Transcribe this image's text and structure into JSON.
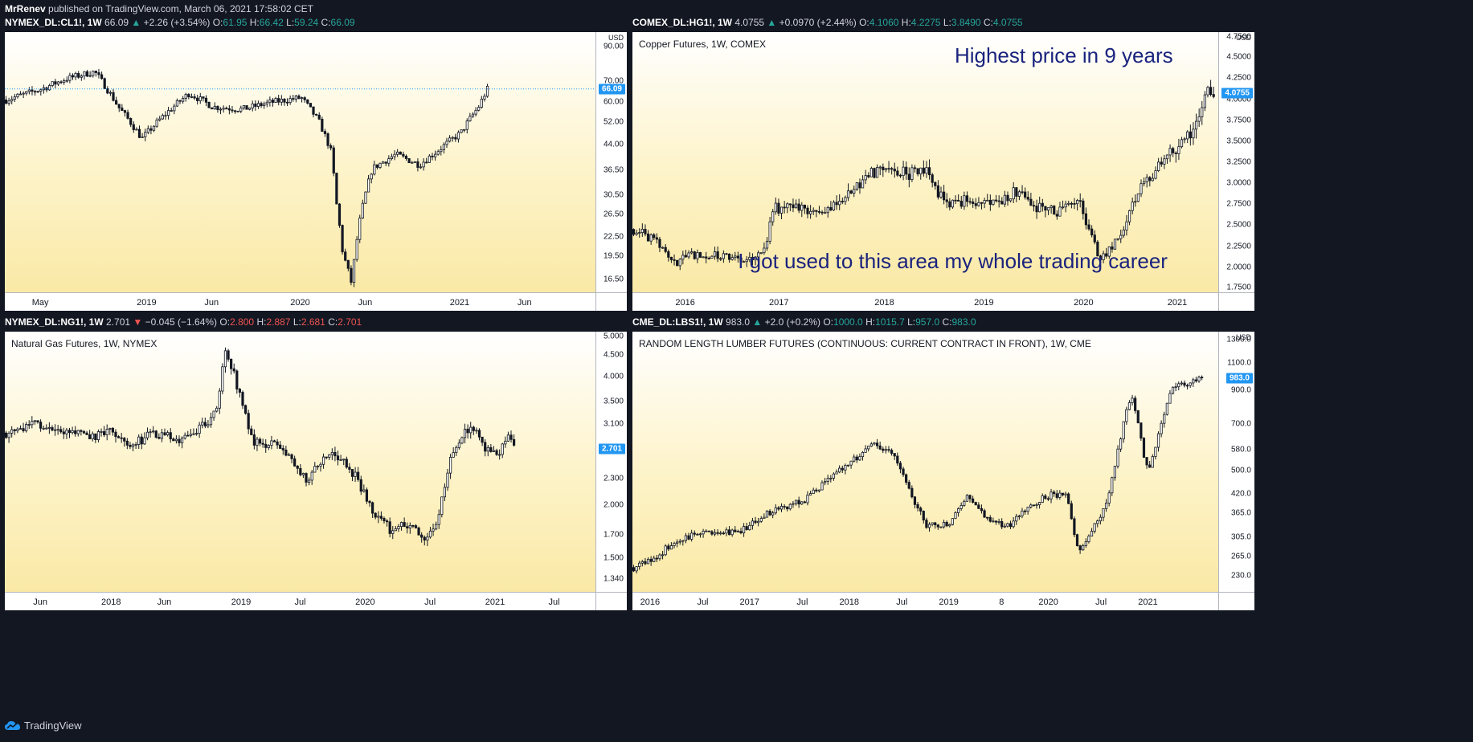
{
  "publisher": {
    "author": "MrRenev",
    "text": "published on TradingView.com, March 06, 2021 17:58:02 CET"
  },
  "footer": {
    "brand": "TradingView",
    "logo_icon": "tradingview-cloud-icon"
  },
  "colors": {
    "up": "#26a69a",
    "down": "#ef5350",
    "price_label": "#2196f3",
    "annotation": "#1a237e"
  },
  "chart_data": [
    {
      "type": "candlestick",
      "header": {
        "symbol": "NYMEX_DL:CL1!, 1W",
        "last": "66.09",
        "dir": "▲",
        "change": "+2.26 (+3.54%)",
        "O": "61.95",
        "H": "66.42",
        "L": "59.24",
        "C": "66.09",
        "color": "up"
      },
      "title": "",
      "currency": "USD",
      "scale": "log",
      "price_label": {
        "text": "66.09",
        "value": 66.09
      },
      "price_line": true,
      "yticks": [
        "90.00",
        "70.00",
        "60.00",
        "52.00",
        "44.00",
        "36.50",
        "30.50",
        "26.50",
        "22.50",
        "19.50",
        "16.50"
      ],
      "ylim": [
        15.0,
        100
      ],
      "xticks": [
        "May",
        "2019",
        "Jun",
        "2020",
        "Jun",
        "2021",
        "Jun"
      ],
      "xtick_pos": [
        0.06,
        0.24,
        0.35,
        0.5,
        0.61,
        0.77,
        0.88
      ],
      "anchors": [
        [
          0.0,
          61
        ],
        [
          0.06,
          66
        ],
        [
          0.1,
          71
        ],
        [
          0.15,
          75
        ],
        [
          0.19,
          58
        ],
        [
          0.23,
          46
        ],
        [
          0.27,
          55
        ],
        [
          0.31,
          64
        ],
        [
          0.35,
          58
        ],
        [
          0.4,
          57
        ],
        [
          0.45,
          60
        ],
        [
          0.5,
          62
        ],
        [
          0.53,
          52
        ],
        [
          0.55,
          42
        ],
        [
          0.56,
          28
        ],
        [
          0.57,
          20
        ],
        [
          0.585,
          16
        ],
        [
          0.6,
          26
        ],
        [
          0.62,
          37
        ],
        [
          0.66,
          41
        ],
        [
          0.7,
          38
        ],
        [
          0.73,
          42
        ],
        [
          0.77,
          48
        ],
        [
          0.8,
          58
        ],
        [
          0.815,
          66
        ]
      ],
      "annotations": []
    },
    {
      "type": "candlestick",
      "header": {
        "symbol": "COMEX_DL:HG1!, 1W",
        "last": "4.0755",
        "dir": "▲",
        "change": "+0.0970 (+2.44%)",
        "O": "4.1060",
        "H": "4.2275",
        "L": "3.8490",
        "C": "4.0755",
        "color": "up"
      },
      "title": "Copper Futures, 1W, COMEX",
      "currency": "USD",
      "scale": "linear",
      "price_label": {
        "text": "4.0755",
        "value": 4.0755
      },
      "price_line": false,
      "yticks": [
        "4.7500",
        "4.5000",
        "4.2500",
        "4.0000",
        "3.7500",
        "3.5000",
        "3.2500",
        "3.0000",
        "2.7500",
        "2.5000",
        "2.2500",
        "2.0000",
        "1.7500"
      ],
      "ylim": [
        1.7,
        4.8
      ],
      "xticks": [
        "2016",
        "2017",
        "2018",
        "2019",
        "2020",
        "2021"
      ],
      "xtick_pos": [
        0.09,
        0.25,
        0.43,
        0.6,
        0.77,
        0.93
      ],
      "anchors": [
        [
          0.0,
          2.45
        ],
        [
          0.04,
          2.3
        ],
        [
          0.07,
          2.05
        ],
        [
          0.1,
          2.15
        ],
        [
          0.14,
          2.15
        ],
        [
          0.18,
          2.08
        ],
        [
          0.22,
          2.15
        ],
        [
          0.24,
          2.7
        ],
        [
          0.28,
          2.72
        ],
        [
          0.32,
          2.6
        ],
        [
          0.36,
          2.8
        ],
        [
          0.4,
          3.1
        ],
        [
          0.43,
          3.2
        ],
        [
          0.47,
          3.1
        ],
        [
          0.5,
          3.2
        ],
        [
          0.53,
          2.75
        ],
        [
          0.57,
          2.8
        ],
        [
          0.61,
          2.75
        ],
        [
          0.65,
          2.9
        ],
        [
          0.69,
          2.7
        ],
        [
          0.73,
          2.65
        ],
        [
          0.76,
          2.8
        ],
        [
          0.79,
          2.2
        ],
        [
          0.8,
          2.1
        ],
        [
          0.83,
          2.4
        ],
        [
          0.87,
          3.0
        ],
        [
          0.91,
          3.3
        ],
        [
          0.94,
          3.5
        ],
        [
          0.96,
          3.7
        ],
        [
          0.98,
          4.05
        ],
        [
          0.99,
          4.08
        ]
      ],
      "annotations": [
        {
          "text": "Highest price in 9 years",
          "x": 0.55,
          "y": 0.86
        },
        {
          "text": "I got used to this area my whole trading career",
          "x": 0.18,
          "y": 0.07
        }
      ]
    },
    {
      "type": "candlestick",
      "header": {
        "symbol": "NYMEX_DL:NG1!, 1W",
        "last": "2.701",
        "dir": "▼",
        "change": "−0.045 (−1.64%)",
        "O": "2.800",
        "H": "2.887",
        "L": "2.681",
        "C": "2.701",
        "color": "down"
      },
      "title": "Natural Gas Futures, 1W, NYMEX",
      "currency": "",
      "scale": "log",
      "price_label": {
        "text": "2.701",
        "value": 2.701
      },
      "price_line": false,
      "yticks": [
        "5.000",
        "4.500",
        "4.000",
        "3.500",
        "3.100",
        "2.300",
        "2.000",
        "1.700",
        "1.500",
        "1.340"
      ],
      "ylim": [
        1.25,
        5.1
      ],
      "xticks": [
        "Jun",
        "2018",
        "Jun",
        "2019",
        "Jul",
        "2020",
        "Jul",
        "2021",
        "Jul"
      ],
      "xtick_pos": [
        0.06,
        0.18,
        0.27,
        0.4,
        0.5,
        0.61,
        0.72,
        0.83,
        0.93
      ],
      "anchors": [
        [
          0.0,
          2.95
        ],
        [
          0.05,
          3.1
        ],
        [
          0.1,
          2.95
        ],
        [
          0.15,
          2.9
        ],
        [
          0.18,
          3.0
        ],
        [
          0.21,
          2.75
        ],
        [
          0.25,
          2.95
        ],
        [
          0.3,
          2.85
        ],
        [
          0.34,
          3.1
        ],
        [
          0.36,
          3.5
        ],
        [
          0.37,
          4.6
        ],
        [
          0.38,
          4.3
        ],
        [
          0.4,
          3.4
        ],
        [
          0.42,
          2.8
        ],
        [
          0.46,
          2.75
        ],
        [
          0.51,
          2.3
        ],
        [
          0.55,
          2.7
        ],
        [
          0.59,
          2.35
        ],
        [
          0.62,
          1.95
        ],
        [
          0.65,
          1.75
        ],
        [
          0.68,
          1.8
        ],
        [
          0.71,
          1.65
        ],
        [
          0.73,
          1.8
        ],
        [
          0.75,
          2.5
        ],
        [
          0.77,
          2.9
        ],
        [
          0.79,
          3.05
        ],
        [
          0.81,
          2.7
        ],
        [
          0.83,
          2.6
        ],
        [
          0.85,
          2.9
        ],
        [
          0.86,
          2.7
        ]
      ],
      "annotations": []
    },
    {
      "type": "candlestick",
      "header": {
        "symbol": "CME_DL:LBS1!, 1W",
        "last": "983.0",
        "dir": "▲",
        "change": "+2.0 (+0.2%)",
        "O": "1000.0",
        "H": "1015.7",
        "L": "957.0",
        "C": "983.0",
        "color": "up"
      },
      "title": "RANDOM LENGTH LUMBER FUTURES (CONTINUOUS: CURRENT CONTRACT IN FRONT), 1W, CME",
      "currency": "USD",
      "scale": "log",
      "price_label": {
        "text": "983.0",
        "value": 983.0
      },
      "price_line": false,
      "yticks": [
        "1300.0",
        "1100.0",
        "900.0",
        "700.0",
        "580.0",
        "500.0",
        "420.0",
        "365.0",
        "305.0",
        "265.0",
        "230.0"
      ],
      "ylim": [
        205,
        1380
      ],
      "xticks": [
        "2016",
        "Jul",
        "2017",
        "Jul",
        "2018",
        "Jul",
        "2019",
        "8",
        "2020",
        "Jul",
        "2021"
      ],
      "xtick_pos": [
        0.03,
        0.12,
        0.2,
        0.29,
        0.37,
        0.46,
        0.54,
        0.63,
        0.71,
        0.8,
        0.88
      ],
      "anchors": [
        [
          0.0,
          245
        ],
        [
          0.04,
          262
        ],
        [
          0.07,
          300
        ],
        [
          0.1,
          310
        ],
        [
          0.14,
          320
        ],
        [
          0.18,
          315
        ],
        [
          0.22,
          360
        ],
        [
          0.26,
          380
        ],
        [
          0.29,
          400
        ],
        [
          0.33,
          460
        ],
        [
          0.37,
          530
        ],
        [
          0.41,
          610
        ],
        [
          0.44,
          570
        ],
        [
          0.47,
          430
        ],
        [
          0.5,
          330
        ],
        [
          0.54,
          340
        ],
        [
          0.57,
          410
        ],
        [
          0.61,
          340
        ],
        [
          0.64,
          330
        ],
        [
          0.67,
          380
        ],
        [
          0.71,
          415
        ],
        [
          0.74,
          425
        ],
        [
          0.75,
          320
        ],
        [
          0.76,
          270
        ],
        [
          0.78,
          310
        ],
        [
          0.81,
          400
        ],
        [
          0.83,
          620
        ],
        [
          0.85,
          870
        ],
        [
          0.87,
          560
        ],
        [
          0.88,
          490
        ],
        [
          0.9,
          700
        ],
        [
          0.92,
          910
        ],
        [
          0.94,
          930
        ],
        [
          0.955,
          980
        ],
        [
          0.97,
          985
        ]
      ],
      "annotations": []
    }
  ]
}
